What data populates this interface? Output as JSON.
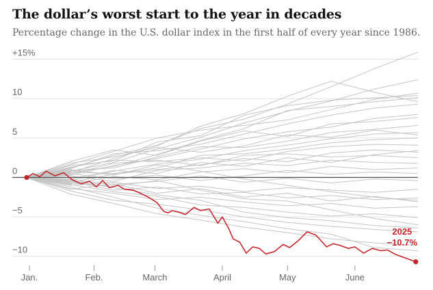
{
  "chart_data": {
    "type": "line",
    "title": "The dollar’s worst start to the year in decades",
    "subtitle": "Percentage change in the U.S. dollar index in the first half of every year since 1986.",
    "xlabel": "",
    "ylabel": "",
    "x_unit": "day of year",
    "xlim": [
      0,
      180
    ],
    "ylim": [
      -11.5,
      16
    ],
    "grid": true,
    "x_ticks": [
      {
        "label": "Jan.",
        "x": 0
      },
      {
        "label": "Feb.",
        "x": 31
      },
      {
        "label": "March",
        "x": 59
      },
      {
        "label": "April",
        "x": 90
      },
      {
        "label": "May",
        "x": 120
      },
      {
        "label": "June",
        "x": 151
      }
    ],
    "y_ticks": [
      {
        "label": "+15%",
        "y": 15
      },
      {
        "label": "10",
        "y": 10
      },
      {
        "label": "5",
        "y": 5
      },
      {
        "label": "0",
        "y": 0
      },
      {
        "label": "−5",
        "y": -5
      },
      {
        "label": "−10",
        "y": -10
      }
    ],
    "highlight": {
      "name": "2025",
      "end_label": "−10.7%",
      "color": "#c0272d",
      "x": [
        0,
        3,
        6,
        9,
        13,
        17,
        21,
        25,
        29,
        32,
        35,
        38,
        42,
        45,
        49,
        53,
        56,
        60,
        63,
        65,
        67,
        70,
        73,
        77,
        80,
        84,
        88,
        90,
        93,
        95,
        98,
        101,
        104,
        107,
        110,
        114,
        118,
        121,
        125,
        129,
        133,
        136,
        138,
        141,
        144,
        148,
        151,
        155,
        159,
        163,
        166,
        170,
        173,
        176,
        179
      ],
      "y": [
        0,
        0.5,
        0.1,
        0.8,
        0.2,
        0.6,
        -0.3,
        -0.8,
        -0.5,
        -1.2,
        -0.4,
        -1.3,
        -1.0,
        -1.5,
        -1.6,
        -2.1,
        -2.5,
        -3.2,
        -4.3,
        -4.5,
        -4.2,
        -4.4,
        -4.7,
        -3.8,
        -4.2,
        -4.0,
        -5.8,
        -5.0,
        -6.5,
        -7.8,
        -8.2,
        -9.6,
        -8.8,
        -9.0,
        -9.7,
        -9.4,
        -8.5,
        -8.9,
        -8.0,
        -6.9,
        -7.3,
        -8.2,
        -8.8,
        -8.4,
        -8.6,
        -9.0,
        -8.8,
        -9.6,
        -9.0,
        -9.3,
        -9.2,
        -9.8,
        -10.1,
        -10.4,
        -10.7
      ]
    },
    "background_series": [
      {
        "x": [
          0,
          20,
          40,
          60,
          80,
          100,
          120,
          140,
          160,
          180
        ],
        "y": [
          0,
          1.2,
          2.8,
          4.1,
          6.2,
          7.4,
          9.3,
          11.5,
          13.8,
          15.9
        ]
      },
      {
        "x": [
          0,
          20,
          40,
          60,
          80,
          100,
          120,
          140,
          160,
          180
        ],
        "y": [
          0,
          0.8,
          1.9,
          3.6,
          5.1,
          6.9,
          8.4,
          9.7,
          11.2,
          12.4
        ]
      },
      {
        "x": [
          0,
          20,
          40,
          60,
          80,
          100,
          120,
          140,
          160,
          180
        ],
        "y": [
          0,
          1.5,
          2.1,
          4.5,
          5.3,
          7.9,
          9.1,
          9.8,
          10.1,
          10.4
        ]
      },
      {
        "x": [
          0,
          20,
          40,
          60,
          80,
          100,
          120,
          140,
          160,
          180
        ],
        "y": [
          0,
          0.6,
          1.4,
          2.9,
          4.7,
          6.2,
          8.5,
          9.0,
          9.6,
          10.1
        ]
      },
      {
        "x": [
          0,
          20,
          40,
          60,
          80,
          100,
          120,
          140,
          160,
          180
        ],
        "y": [
          0,
          1.1,
          3.0,
          3.4,
          4.2,
          5.5,
          6.8,
          7.9,
          8.8,
          9.3
        ]
      },
      {
        "x": [
          0,
          20,
          40,
          60,
          80,
          100,
          120,
          140,
          160,
          180
        ],
        "y": [
          0,
          0.3,
          1.5,
          2.4,
          3.6,
          4.9,
          5.8,
          6.4,
          7.5,
          8.0
        ]
      },
      {
        "x": [
          0,
          20,
          40,
          60,
          80,
          100,
          120,
          140,
          160,
          180
        ],
        "y": [
          0,
          0.9,
          1.2,
          2.6,
          3.9,
          3.8,
          4.6,
          5.7,
          6.1,
          6.6
        ]
      },
      {
        "x": [
          0,
          20,
          40,
          60,
          80,
          100,
          120,
          140,
          160,
          180
        ],
        "y": [
          0,
          -0.4,
          0.8,
          1.7,
          2.3,
          3.4,
          4.1,
          4.9,
          5.5,
          5.7
        ]
      },
      {
        "x": [
          0,
          20,
          40,
          60,
          80,
          100,
          120,
          140,
          160,
          180
        ],
        "y": [
          0,
          0.7,
          0.5,
          1.2,
          2.8,
          3.0,
          3.6,
          4.4,
          4.8,
          5.0
        ]
      },
      {
        "x": [
          0,
          20,
          40,
          60,
          80,
          100,
          120,
          140,
          160,
          180
        ],
        "y": [
          0,
          1.3,
          2.2,
          2.0,
          2.5,
          2.1,
          3.3,
          3.9,
          4.2,
          4.1
        ]
      },
      {
        "x": [
          0,
          20,
          40,
          60,
          80,
          100,
          120,
          140,
          160,
          180
        ],
        "y": [
          0,
          -0.6,
          0.4,
          1.0,
          1.6,
          2.4,
          2.0,
          3.1,
          3.5,
          3.2
        ]
      },
      {
        "x": [
          0,
          20,
          40,
          60,
          80,
          100,
          120,
          140,
          160,
          180
        ],
        "y": [
          0,
          0.4,
          1.8,
          2.2,
          1.5,
          2.8,
          3.0,
          2.6,
          2.8,
          2.5
        ]
      },
      {
        "x": [
          0,
          20,
          40,
          60,
          80,
          100,
          120,
          140,
          160,
          180
        ],
        "y": [
          0,
          0.2,
          -0.5,
          0.9,
          1.2,
          1.8,
          1.5,
          2.2,
          1.9,
          1.8
        ]
      },
      {
        "x": [
          0,
          20,
          40,
          60,
          80,
          100,
          120,
          140,
          160,
          180
        ],
        "y": [
          0,
          -0.8,
          0.1,
          -0.3,
          0.7,
          1.1,
          0.6,
          1.4,
          1.0,
          1.2
        ]
      },
      {
        "x": [
          0,
          20,
          40,
          60,
          80,
          100,
          120,
          140,
          160,
          180
        ],
        "y": [
          0,
          0.5,
          -0.2,
          0.3,
          -0.4,
          0.2,
          0.9,
          0.4,
          0.7,
          0.5
        ]
      },
      {
        "x": [
          0,
          20,
          40,
          60,
          80,
          100,
          120,
          140,
          160,
          180
        ],
        "y": [
          0,
          -0.3,
          -0.9,
          -0.5,
          0.2,
          -0.6,
          -0.1,
          -0.7,
          -0.2,
          -0.4
        ]
      },
      {
        "x": [
          0,
          20,
          40,
          60,
          80,
          100,
          120,
          140,
          160,
          180
        ],
        "y": [
          0,
          -1.0,
          -0.6,
          -1.4,
          -1.1,
          -1.8,
          -1.3,
          -1.6,
          -1.9,
          -1.5
        ]
      },
      {
        "x": [
          0,
          20,
          40,
          60,
          80,
          100,
          120,
          140,
          160,
          180
        ],
        "y": [
          0,
          -0.5,
          -1.6,
          -1.2,
          -2.1,
          -1.9,
          -2.6,
          -2.3,
          -2.8,
          -2.6
        ]
      },
      {
        "x": [
          0,
          20,
          40,
          60,
          80,
          100,
          120,
          140,
          160,
          180
        ],
        "y": [
          0,
          -1.4,
          -2.0,
          -2.8,
          -2.5,
          -3.1,
          -3.6,
          -3.3,
          -3.9,
          -3.7
        ]
      },
      {
        "x": [
          0,
          20,
          40,
          60,
          80,
          100,
          120,
          140,
          160,
          180
        ],
        "y": [
          0,
          -0.9,
          -1.8,
          -2.4,
          -3.5,
          -3.8,
          -4.4,
          -4.9,
          -4.6,
          -5.1
        ]
      },
      {
        "x": [
          0,
          20,
          40,
          60,
          80,
          100,
          120,
          140,
          160,
          180
        ],
        "y": [
          0,
          -1.7,
          -2.9,
          -3.4,
          -4.1,
          -5.0,
          -5.7,
          -6.2,
          -6.6,
          -6.9
        ]
      },
      {
        "x": [
          0,
          20,
          40,
          60,
          80,
          100,
          120,
          140,
          160,
          180
        ],
        "y": [
          0,
          -2.1,
          -3.3,
          -4.6,
          -5.4,
          -6.3,
          -7.0,
          -7.8,
          -8.3,
          -8.6
        ]
      },
      {
        "x": [
          0,
          20,
          40,
          60,
          80,
          100,
          120,
          140,
          160,
          180
        ],
        "y": [
          0,
          -1.2,
          -2.5,
          -3.9,
          -4.8,
          -5.6,
          -6.5,
          -7.2,
          -8.9,
          -9.3
        ]
      },
      {
        "x": [
          0,
          20,
          40,
          60,
          80,
          100,
          120,
          140,
          160,
          180
        ],
        "y": [
          0,
          2.0,
          3.5,
          2.8,
          4.6,
          5.9,
          5.2,
          6.8,
          7.1,
          7.6
        ]
      },
      {
        "x": [
          0,
          20,
          40,
          60,
          80,
          100,
          120,
          140,
          160,
          180
        ],
        "y": [
          0,
          1.8,
          2.6,
          3.8,
          3.2,
          4.0,
          5.4,
          5.1,
          6.0,
          5.4
        ]
      },
      {
        "x": [
          0,
          20,
          40,
          60,
          80,
          100,
          120,
          140,
          160,
          180
        ],
        "y": [
          0,
          -0.2,
          0.9,
          0.5,
          1.9,
          1.4,
          2.5,
          1.9,
          2.9,
          3.4
        ]
      },
      {
        "x": [
          0,
          20,
          40,
          60,
          80,
          100,
          120,
          140,
          160,
          180
        ],
        "y": [
          0,
          -1.5,
          -0.8,
          -2.0,
          -1.4,
          -2.5,
          -2.0,
          -3.0,
          -2.4,
          -3.1
        ]
      },
      {
        "x": [
          0,
          20,
          40,
          60,
          80,
          100,
          120,
          140,
          160,
          180
        ],
        "y": [
          0,
          1.0,
          0.3,
          1.6,
          0.8,
          -0.2,
          -1.0,
          -1.8,
          -2.5,
          -2.9
        ]
      },
      {
        "x": [
          0,
          20,
          40,
          60,
          80,
          100,
          120,
          140,
          160,
          180
        ],
        "y": [
          0,
          0.6,
          2.4,
          4.0,
          6.5,
          8.1,
          10.3,
          12.2,
          10.8,
          9.6
        ]
      },
      {
        "x": [
          0,
          20,
          40,
          60,
          80,
          100,
          120,
          140,
          160,
          180
        ],
        "y": [
          0,
          -0.7,
          -1.1,
          -0.4,
          -1.6,
          -2.7,
          -3.0,
          -4.1,
          -5.2,
          -6.0
        ]
      },
      {
        "x": [
          0,
          20,
          40,
          60,
          80,
          100,
          120,
          140,
          160,
          180
        ],
        "y": [
          0,
          1.6,
          3.3,
          5.0,
          6.0,
          6.6,
          7.3,
          8.6,
          9.9,
          10.7
        ]
      },
      {
        "x": [
          0,
          20,
          40,
          60,
          80,
          100,
          120,
          140,
          160,
          180
        ],
        "y": [
          0,
          -0.4,
          -1.3,
          -2.2,
          -2.9,
          -4.4,
          -5.1,
          -5.5,
          -6.1,
          -6.4
        ]
      }
    ]
  }
}
